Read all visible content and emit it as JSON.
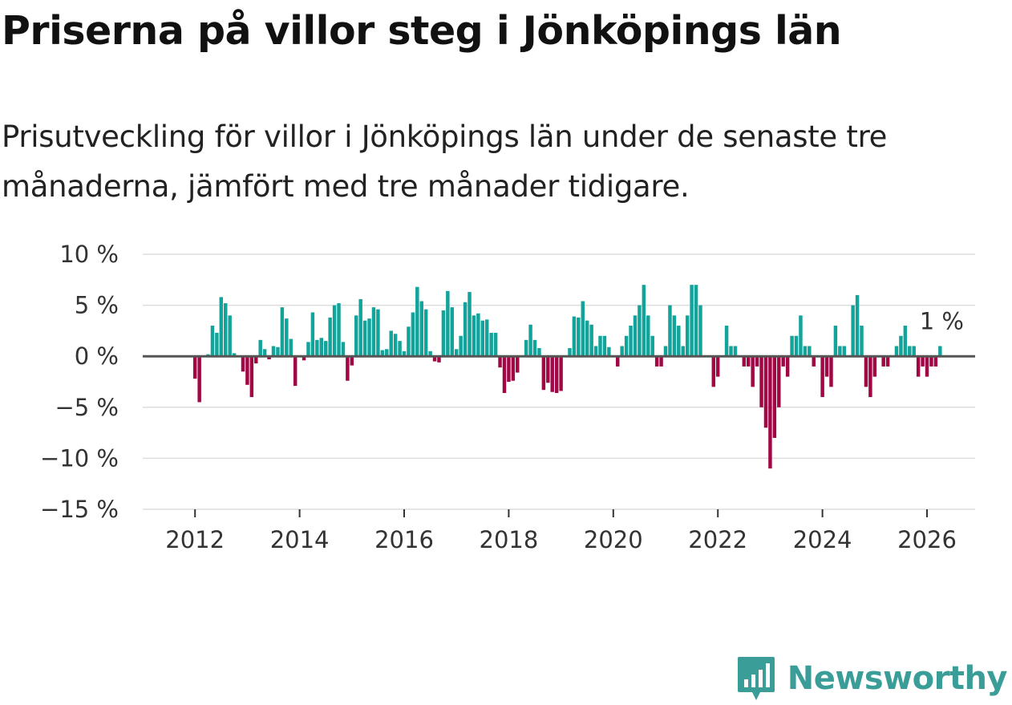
{
  "header": {
    "title": "Priserna på villor steg i Jönköpings län",
    "subtitle": "Prisutveckling för villor i Jönköpings län under de senaste tre månaderna, jämfört med tre månader tidigare."
  },
  "colors": {
    "positive": "#12a39a",
    "negative": "#a10745",
    "gridline": "#dddddd",
    "zeroline": "#555555"
  },
  "branding": {
    "name": "Newsworthy",
    "icon": "bar-chart-speech-bubble-icon"
  },
  "chart_data": {
    "type": "bar",
    "title": "Priserna på villor steg i Jönköpings län",
    "xlabel": "",
    "ylabel": "",
    "ylim": [
      -15,
      10
    ],
    "yticks": [
      10,
      5,
      0,
      -5,
      -10,
      -15
    ],
    "ytick_labels": [
      "10 %",
      "5 %",
      "0 %",
      "−5 %",
      "−10 %",
      "−15 %"
    ],
    "xlim": [
      2011.0,
      2026.92
    ],
    "xticks": [
      2012,
      2014,
      2016,
      2018,
      2020,
      2022,
      2024,
      2026
    ],
    "xtick_labels": [
      "2012",
      "2014",
      "2016",
      "2018",
      "2020",
      "2022",
      "2024",
      "2026"
    ],
    "annotation": {
      "text": "1 %"
    },
    "start": {
      "year": 2012,
      "month": 1
    },
    "grid": true,
    "values": [
      -2.2,
      -4.5,
      0,
      0.2,
      3.0,
      2.3,
      5.8,
      5.2,
      4.0,
      0.3,
      0,
      -1.5,
      -2.8,
      -4.0,
      -0.7,
      1.6,
      0.7,
      -0.3,
      1.0,
      0.9,
      4.8,
      3.7,
      1.7,
      -2.9,
      0,
      -0.4,
      1.4,
      4.3,
      1.6,
      1.8,
      1.5,
      3.8,
      5.0,
      5.2,
      1.4,
      -2.4,
      -0.9,
      4.0,
      5.6,
      3.5,
      3.7,
      4.8,
      4.6,
      0.6,
      0.7,
      2.5,
      2.2,
      1.5,
      0.5,
      2.9,
      4.3,
      6.8,
      5.4,
      4.6,
      0.5,
      -0.5,
      -0.6,
      4.5,
      6.4,
      4.8,
      0.7,
      2.0,
      5.3,
      6.3,
      4.0,
      4.2,
      3.5,
      3.6,
      2.3,
      2.3,
      -1.1,
      -3.6,
      -2.5,
      -2.4,
      -1.6,
      0,
      1.6,
      3.1,
      1.6,
      0.8,
      -3.3,
      -2.6,
      -3.5,
      -3.6,
      -3.4,
      0,
      0.8,
      3.9,
      3.8,
      5.4,
      3.5,
      3.1,
      1.0,
      2.0,
      2.0,
      0.9,
      0,
      -1.0,
      1.0,
      2.0,
      3.0,
      4.0,
      5.0,
      7.0,
      4.0,
      2.0,
      -1.0,
      -1.0,
      1.0,
      5.0,
      4.0,
      3.0,
      1.0,
      4.0,
      7.0,
      7.0,
      5.0,
      0,
      0,
      -3.0,
      -2.0,
      0,
      3.0,
      1.0,
      1.0,
      0,
      -1.0,
      -1.0,
      -3.0,
      -1.0,
      -5.0,
      -7.0,
      -11.0,
      -8.0,
      -5.0,
      -1.0,
      -2.0,
      2.0,
      2.0,
      4.0,
      1.0,
      1.0,
      -1.0,
      0,
      -4.0,
      -2.0,
      -3.0,
      3.0,
      1.0,
      1.0,
      0,
      5.0,
      6.0,
      3.0,
      -3.0,
      -4.0,
      -2.0,
      0,
      -1.0,
      -1.0,
      0,
      1.0,
      2.0,
      3.0,
      1.0,
      1.0,
      -2.0,
      -1.0,
      -2.0,
      -1.0,
      -1.0,
      1.0
    ]
  }
}
